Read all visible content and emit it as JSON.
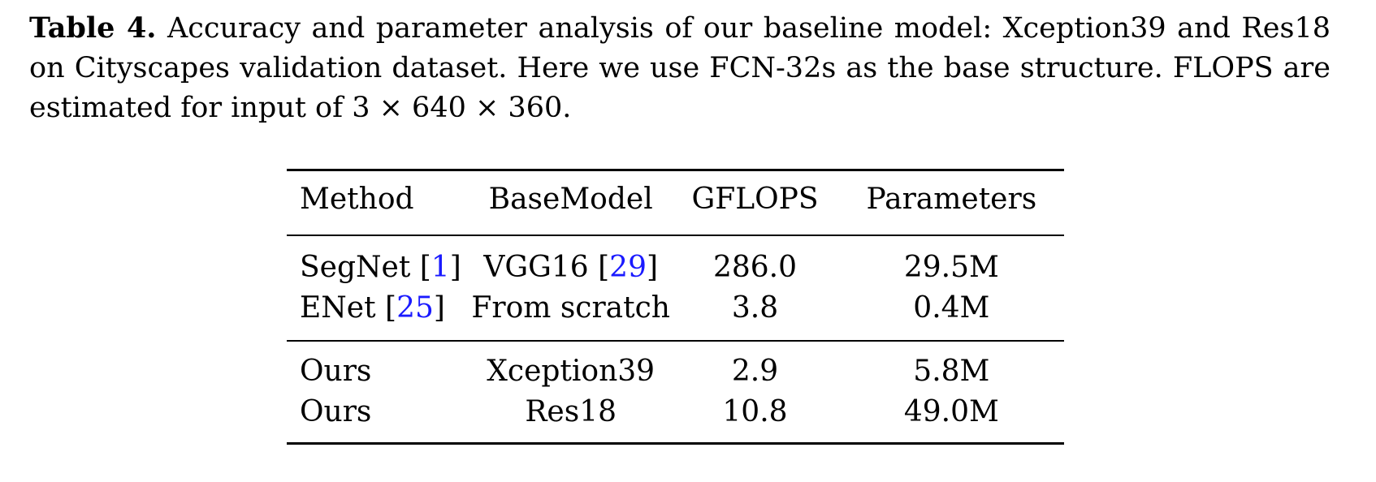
{
  "caption": {
    "label": "Table 4.",
    "text": " Accuracy and parameter analysis of our baseline model: Xception39 and Res18 on Cityscapes validation dataset. Here we use FCN-32s as the base structure. FLOPS are estimated for input of 3 × 640 × 360."
  },
  "table": {
    "headers": [
      "Method",
      "BaseModel",
      "GFLOPS",
      "Parameters"
    ],
    "rows": [
      {
        "method": "SegNet",
        "method_cite": "1",
        "base": "VGG16",
        "base_cite": "29",
        "gflops": "286.0",
        "params": "29.5M"
      },
      {
        "method": "ENet",
        "method_cite": "25",
        "base": "From scratch",
        "base_cite": "",
        "gflops": "3.8",
        "params": "0.4M"
      },
      {
        "method": "Ours",
        "method_cite": "",
        "base": "Xception39",
        "base_cite": "",
        "gflops": "2.9",
        "params": "5.8M"
      },
      {
        "method": "Ours",
        "method_cite": "",
        "base": "Res18",
        "base_cite": "",
        "gflops": "10.8",
        "params": "49.0M"
      }
    ]
  },
  "colors": {
    "citation": "#1a1aff",
    "text": "#000000"
  }
}
